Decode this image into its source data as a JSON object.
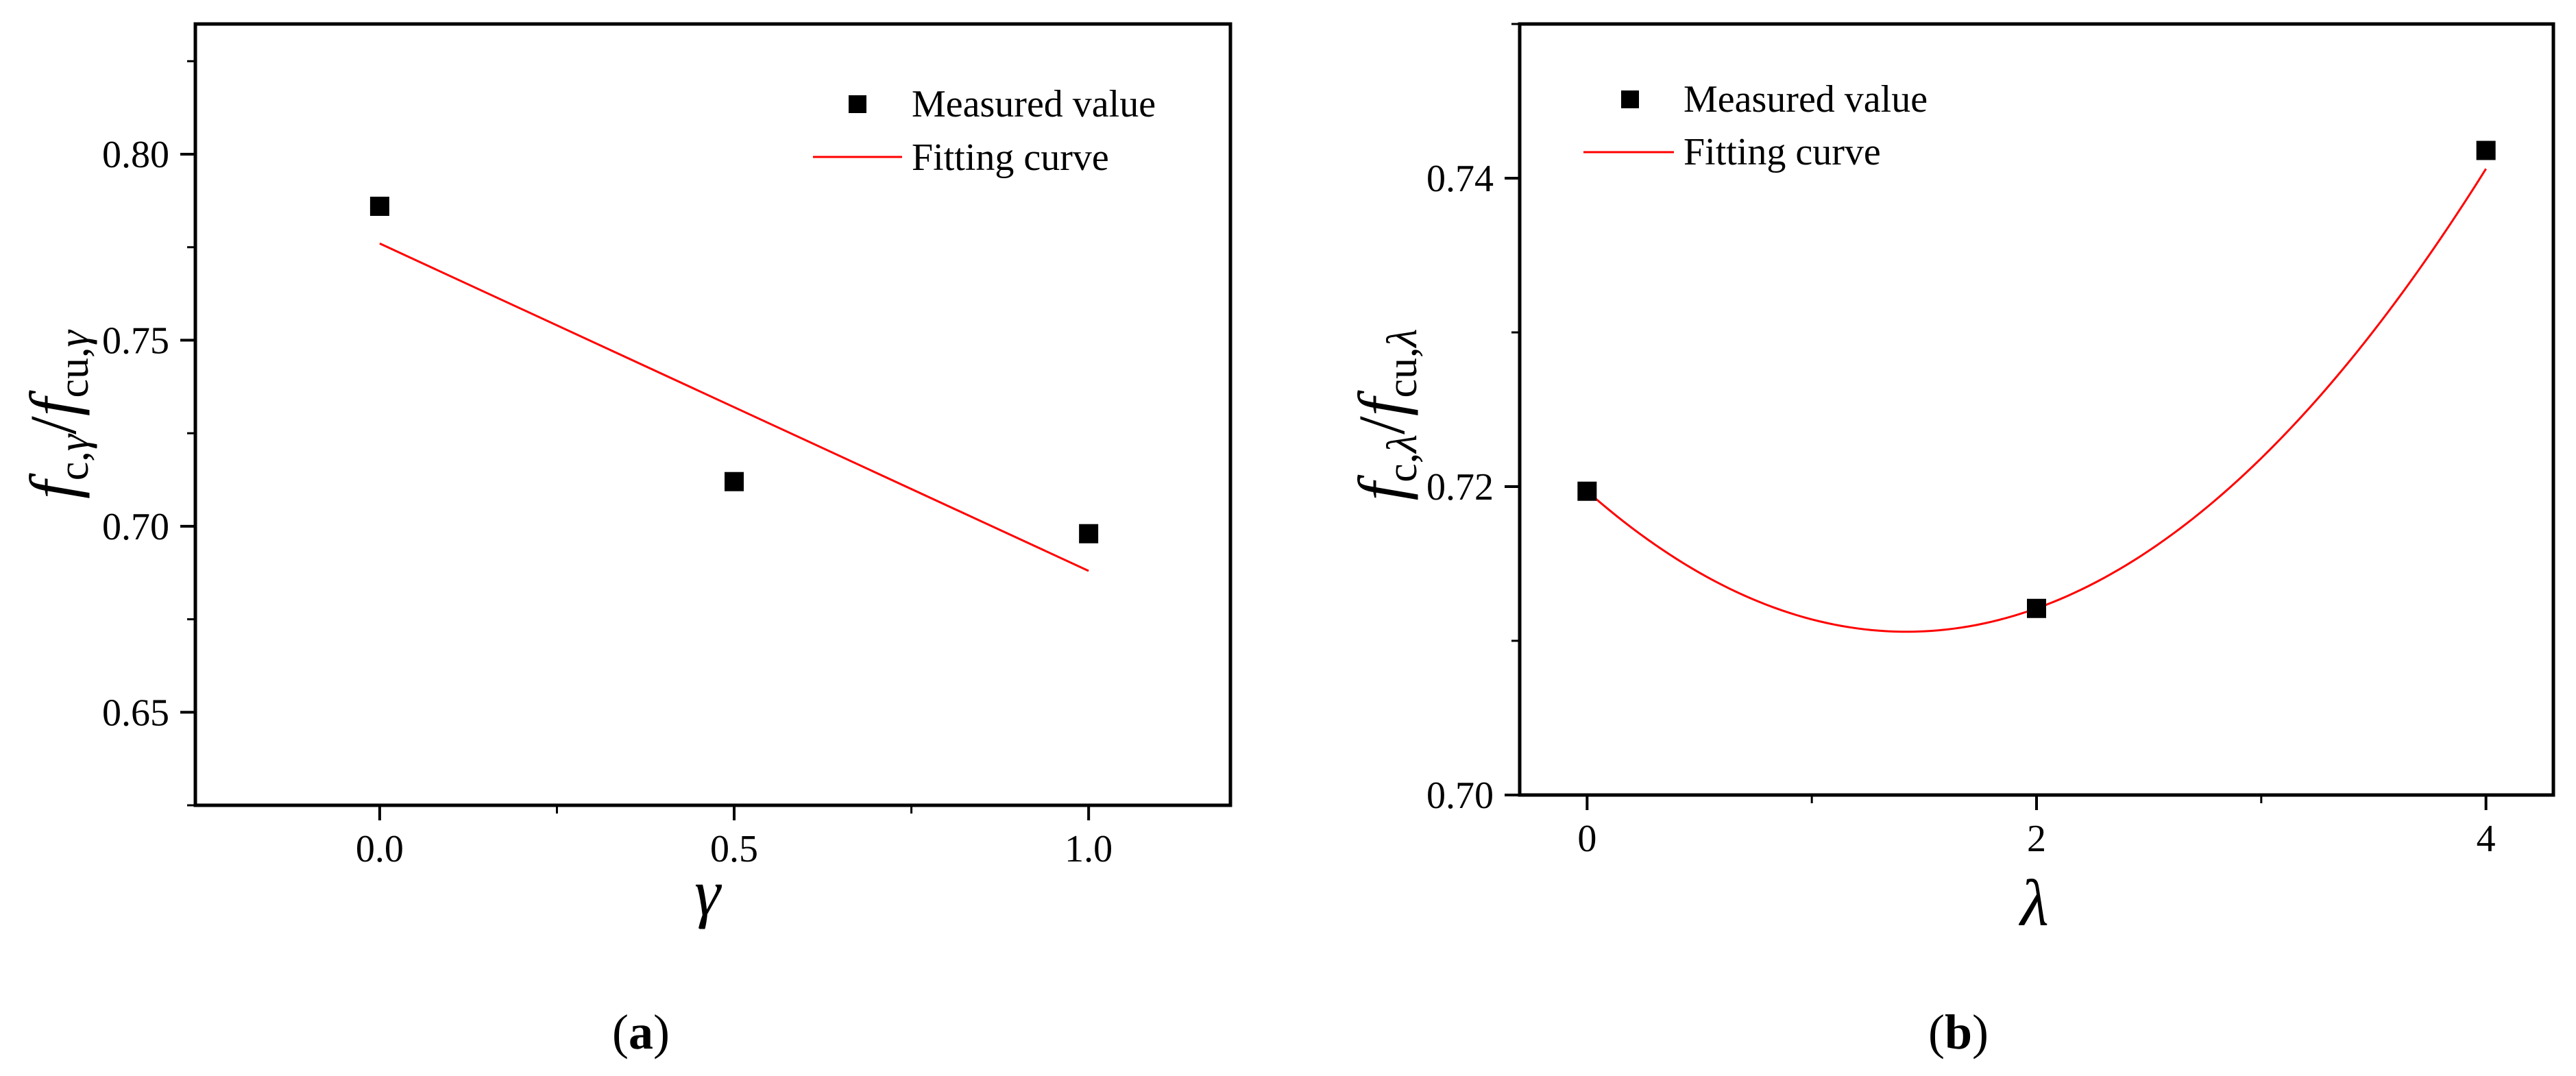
{
  "chart_data": [
    {
      "panel_label": "a",
      "type": "scatter",
      "xlabel": "γ",
      "ylabel": {
        "f1": "f",
        "sub1": "c,",
        "sym1": "γ",
        "slash": "/",
        "f2": "f",
        "sub2": "cu,",
        "sym2": "γ"
      },
      "xlim": [
        -0.26,
        1.2
      ],
      "ylim": [
        0.625,
        0.835
      ],
      "xticks": [
        0.0,
        0.5,
        1.0
      ],
      "xtick_labels": [
        "0.0",
        "0.5",
        "1.0"
      ],
      "yticks": [
        0.65,
        0.7,
        0.75,
        0.8
      ],
      "ytick_labels": [
        "0.65",
        "0.70",
        "0.75",
        "0.80"
      ],
      "series": [
        {
          "name": "Measured value",
          "kind": "markers",
          "color": "#000000",
          "x": [
            0.0,
            0.5,
            1.0
          ],
          "y": [
            0.786,
            0.712,
            0.698
          ]
        },
        {
          "name": "Fitting curve",
          "kind": "line",
          "color": "#ff0000",
          "x": [
            0.0,
            1.0
          ],
          "y": [
            0.776,
            0.688
          ]
        }
      ],
      "legend_position": "top-right"
    },
    {
      "panel_label": "b",
      "type": "scatter",
      "xlabel": "λ",
      "ylabel": {
        "f1": "f",
        "sub1": "c,",
        "sym1": "λ",
        "slash": "/",
        "f2": "f",
        "sub2": "cu,",
        "sym2": "λ"
      },
      "xlim": [
        -0.3,
        4.3
      ],
      "ylim": [
        0.7,
        0.75
      ],
      "xticks": [
        0,
        2,
        4
      ],
      "xtick_labels": [
        "0",
        "2",
        "4"
      ],
      "yticks": [
        0.7,
        0.72,
        0.74
      ],
      "ytick_labels": [
        "0.70",
        "0.72",
        "0.74"
      ],
      "series": [
        {
          "name": "Measured value",
          "kind": "markers",
          "color": "#000000",
          "x": [
            0,
            2,
            4
          ],
          "y": [
            0.7197,
            0.7121,
            0.7418
          ]
        },
        {
          "name": "Fitting curve",
          "kind": "quadratic",
          "color": "#ff0000",
          "x_range": [
            0,
            4
          ],
          "coefficients": [
            0.7197,
            -0.012825,
            0.004513
          ]
        }
      ],
      "legend_position": "top-left"
    }
  ]
}
